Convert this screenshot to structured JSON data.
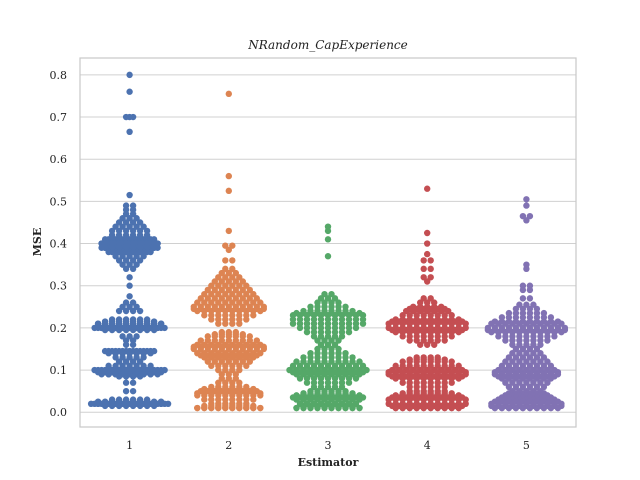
{
  "chart_data": {
    "type": "scatter",
    "subtype": "swarm",
    "title": "NRandom_CapExperience",
    "xlabel": "Estimator",
    "ylabel": "MSE",
    "categories": [
      "1",
      "2",
      "3",
      "4",
      "5"
    ],
    "ylim": [
      -0.035,
      0.84
    ],
    "yticks": [
      0.0,
      0.1,
      0.2,
      0.3,
      0.4,
      0.5,
      0.6,
      0.7,
      0.8
    ],
    "ytick_labels": [
      "0.0",
      "0.1",
      "0.2",
      "0.3",
      "0.4",
      "0.5",
      "0.6",
      "0.7",
      "0.8"
    ],
    "grid": true,
    "colors": [
      "#4c72b0",
      "#dd8452",
      "#55a868",
      "#c44e52",
      "#8172b3"
    ],
    "series": [
      {
        "category": "1",
        "color": "#4c72b0",
        "values": [
          0.8,
          0.76,
          0.7,
          0.7,
          0.665,
          0.515,
          0.49,
          0.48,
          0.47,
          0.46,
          0.45,
          0.44,
          0.43,
          0.42,
          0.41,
          0.41,
          0.4,
          0.4,
          0.4,
          0.39,
          0.39,
          0.39,
          0.38,
          0.38,
          0.37,
          0.36,
          0.35,
          0.34,
          0.32,
          0.3,
          0.275,
          0.26,
          0.25,
          0.24,
          0.22,
          0.215,
          0.21,
          0.21,
          0.205,
          0.2,
          0.2,
          0.2,
          0.195,
          0.18,
          0.17,
          0.16,
          0.145,
          0.145,
          0.14,
          0.13,
          0.12,
          0.11,
          0.1,
          0.1,
          0.095,
          0.09,
          0.09,
          0.085,
          0.07,
          0.05,
          0.03,
          0.025,
          0.02,
          0.02,
          0.02,
          0.015
        ],
        "counts": [
          1,
          1,
          2,
          1,
          1,
          1,
          2,
          2,
          2,
          3,
          4,
          5,
          6,
          6,
          7,
          8,
          9,
          9,
          8,
          8,
          9,
          8,
          7,
          6,
          5,
          4,
          3,
          2,
          1,
          1,
          1,
          2,
          3,
          4,
          6,
          8,
          10,
          10,
          10,
          11,
          10,
          9,
          8,
          3,
          2,
          2,
          8,
          7,
          7,
          5,
          4,
          7,
          10,
          11,
          10,
          9,
          7,
          4,
          2,
          2,
          6,
          10,
          12,
          11,
          10,
          8
        ]
      },
      {
        "category": "2",
        "color": "#dd8452",
        "values": [
          0.755,
          0.56,
          0.525,
          0.43,
          0.395,
          0.385,
          0.36,
          0.34,
          0.33,
          0.32,
          0.31,
          0.3,
          0.29,
          0.28,
          0.27,
          0.26,
          0.25,
          0.245,
          0.24,
          0.23,
          0.22,
          0.21,
          0.19,
          0.185,
          0.18,
          0.17,
          0.16,
          0.155,
          0.15,
          0.14,
          0.135,
          0.13,
          0.12,
          0.11,
          0.1,
          0.09,
          0.08,
          0.07,
          0.06,
          0.055,
          0.05,
          0.045,
          0.04,
          0.03,
          0.02,
          0.015,
          0.01,
          0.01
        ],
        "counts": [
          1,
          1,
          1,
          1,
          2,
          1,
          2,
          2,
          3,
          4,
          5,
          6,
          7,
          8,
          9,
          10,
          11,
          11,
          10,
          8,
          6,
          4,
          3,
          5,
          7,
          9,
          10,
          11,
          11,
          10,
          9,
          8,
          7,
          6,
          4,
          3,
          3,
          4,
          6,
          8,
          9,
          10,
          10,
          8,
          6,
          8,
          10,
          10
        ]
      },
      {
        "category": "3",
        "color": "#55a868",
        "values": [
          0.44,
          0.43,
          0.41,
          0.37,
          0.28,
          0.27,
          0.26,
          0.25,
          0.24,
          0.235,
          0.23,
          0.22,
          0.21,
          0.2,
          0.19,
          0.18,
          0.17,
          0.16,
          0.15,
          0.14,
          0.13,
          0.12,
          0.11,
          0.1,
          0.095,
          0.09,
          0.08,
          0.07,
          0.06,
          0.05,
          0.045,
          0.04,
          0.035,
          0.03,
          0.02,
          0.015,
          0.01,
          0.01
        ],
        "counts": [
          1,
          1,
          1,
          1,
          2,
          3,
          4,
          6,
          8,
          10,
          11,
          11,
          11,
          9,
          7,
          5,
          4,
          3,
          4,
          6,
          8,
          10,
          11,
          12,
          11,
          10,
          9,
          7,
          5,
          6,
          8,
          10,
          11,
          10,
          9,
          8,
          10,
          10
        ]
      },
      {
        "category": "4",
        "color": "#c44e52",
        "values": [
          0.53,
          0.425,
          0.4,
          0.375,
          0.36,
          0.34,
          0.32,
          0.31,
          0.27,
          0.26,
          0.25,
          0.245,
          0.24,
          0.23,
          0.22,
          0.215,
          0.21,
          0.2,
          0.195,
          0.19,
          0.18,
          0.17,
          0.16,
          0.13,
          0.125,
          0.12,
          0.11,
          0.1,
          0.095,
          0.09,
          0.085,
          0.08,
          0.07,
          0.06,
          0.05,
          0.045,
          0.04,
          0.035,
          0.03,
          0.02,
          0.015,
          0.01,
          0.01
        ],
        "counts": [
          1,
          1,
          1,
          1,
          2,
          2,
          2,
          1,
          2,
          3,
          5,
          6,
          7,
          8,
          10,
          11,
          12,
          12,
          11,
          10,
          8,
          6,
          3,
          4,
          6,
          8,
          10,
          11,
          12,
          12,
          11,
          10,
          8,
          6,
          6,
          8,
          10,
          11,
          12,
          12,
          11,
          10,
          10
        ]
      },
      {
        "category": "5",
        "color": "#8172b3",
        "values": [
          0.505,
          0.49,
          0.465,
          0.455,
          0.35,
          0.34,
          0.3,
          0.29,
          0.27,
          0.255,
          0.245,
          0.235,
          0.225,
          0.215,
          0.21,
          0.2,
          0.195,
          0.19,
          0.18,
          0.17,
          0.16,
          0.15,
          0.14,
          0.13,
          0.12,
          0.11,
          0.1,
          0.095,
          0.09,
          0.085,
          0.08,
          0.07,
          0.06,
          0.05,
          0.045,
          0.04,
          0.035,
          0.03,
          0.025,
          0.02,
          0.015,
          0.01,
          0.01
        ],
        "counts": [
          1,
          1,
          2,
          1,
          1,
          1,
          2,
          2,
          2,
          3,
          4,
          6,
          8,
          10,
          11,
          12,
          12,
          11,
          9,
          7,
          5,
          4,
          5,
          6,
          7,
          8,
          9,
          10,
          10,
          9,
          8,
          7,
          6,
          5,
          6,
          7,
          8,
          9,
          10,
          11,
          11,
          10,
          10
        ]
      }
    ]
  }
}
